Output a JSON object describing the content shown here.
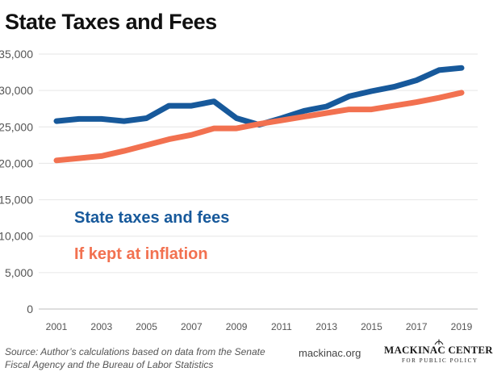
{
  "chart_data": {
    "type": "line",
    "title": "State Taxes and Fees",
    "xlabel": "",
    "ylabel": "",
    "x": [
      2001,
      2002,
      2003,
      2004,
      2005,
      2006,
      2007,
      2008,
      2009,
      2010,
      2011,
      2012,
      2013,
      2014,
      2015,
      2016,
      2017,
      2018,
      2019
    ],
    "xticks": [
      "2001",
      "2003",
      "2005",
      "2007",
      "2009",
      "2011",
      "2013",
      "2015",
      "2017",
      "2019"
    ],
    "yticks": [
      "0",
      "5,000",
      "10,000",
      "15,000",
      "20,000",
      "25,000",
      "30,000",
      "35,000"
    ],
    "ylim": [
      0,
      35000
    ],
    "grid": true,
    "series": [
      {
        "name": "State taxes and fees",
        "color": "#17599b",
        "values": [
          25800,
          26100,
          26100,
          25800,
          26200,
          27900,
          27900,
          28500,
          26200,
          25300,
          26200,
          27200,
          27800,
          29200,
          29900,
          30500,
          31400,
          32800,
          33100
        ]
      },
      {
        "name": "If kept at inflation",
        "color": "#f27150",
        "values": [
          20400,
          20700,
          21000,
          21700,
          22500,
          23300,
          23900,
          24800,
          24800,
          25400,
          25900,
          26400,
          26900,
          27400,
          27400,
          27900,
          28400,
          29000,
          29700
        ]
      }
    ]
  },
  "footer": {
    "source": "Source: Author’s calculations based on data from the Senate Fiscal Agency and the Bureau of Labor Statistics",
    "site": "mackinac.org",
    "logo_name": "MACKINAC CENTER",
    "logo_sub": "FOR PUBLIC POLICY"
  }
}
